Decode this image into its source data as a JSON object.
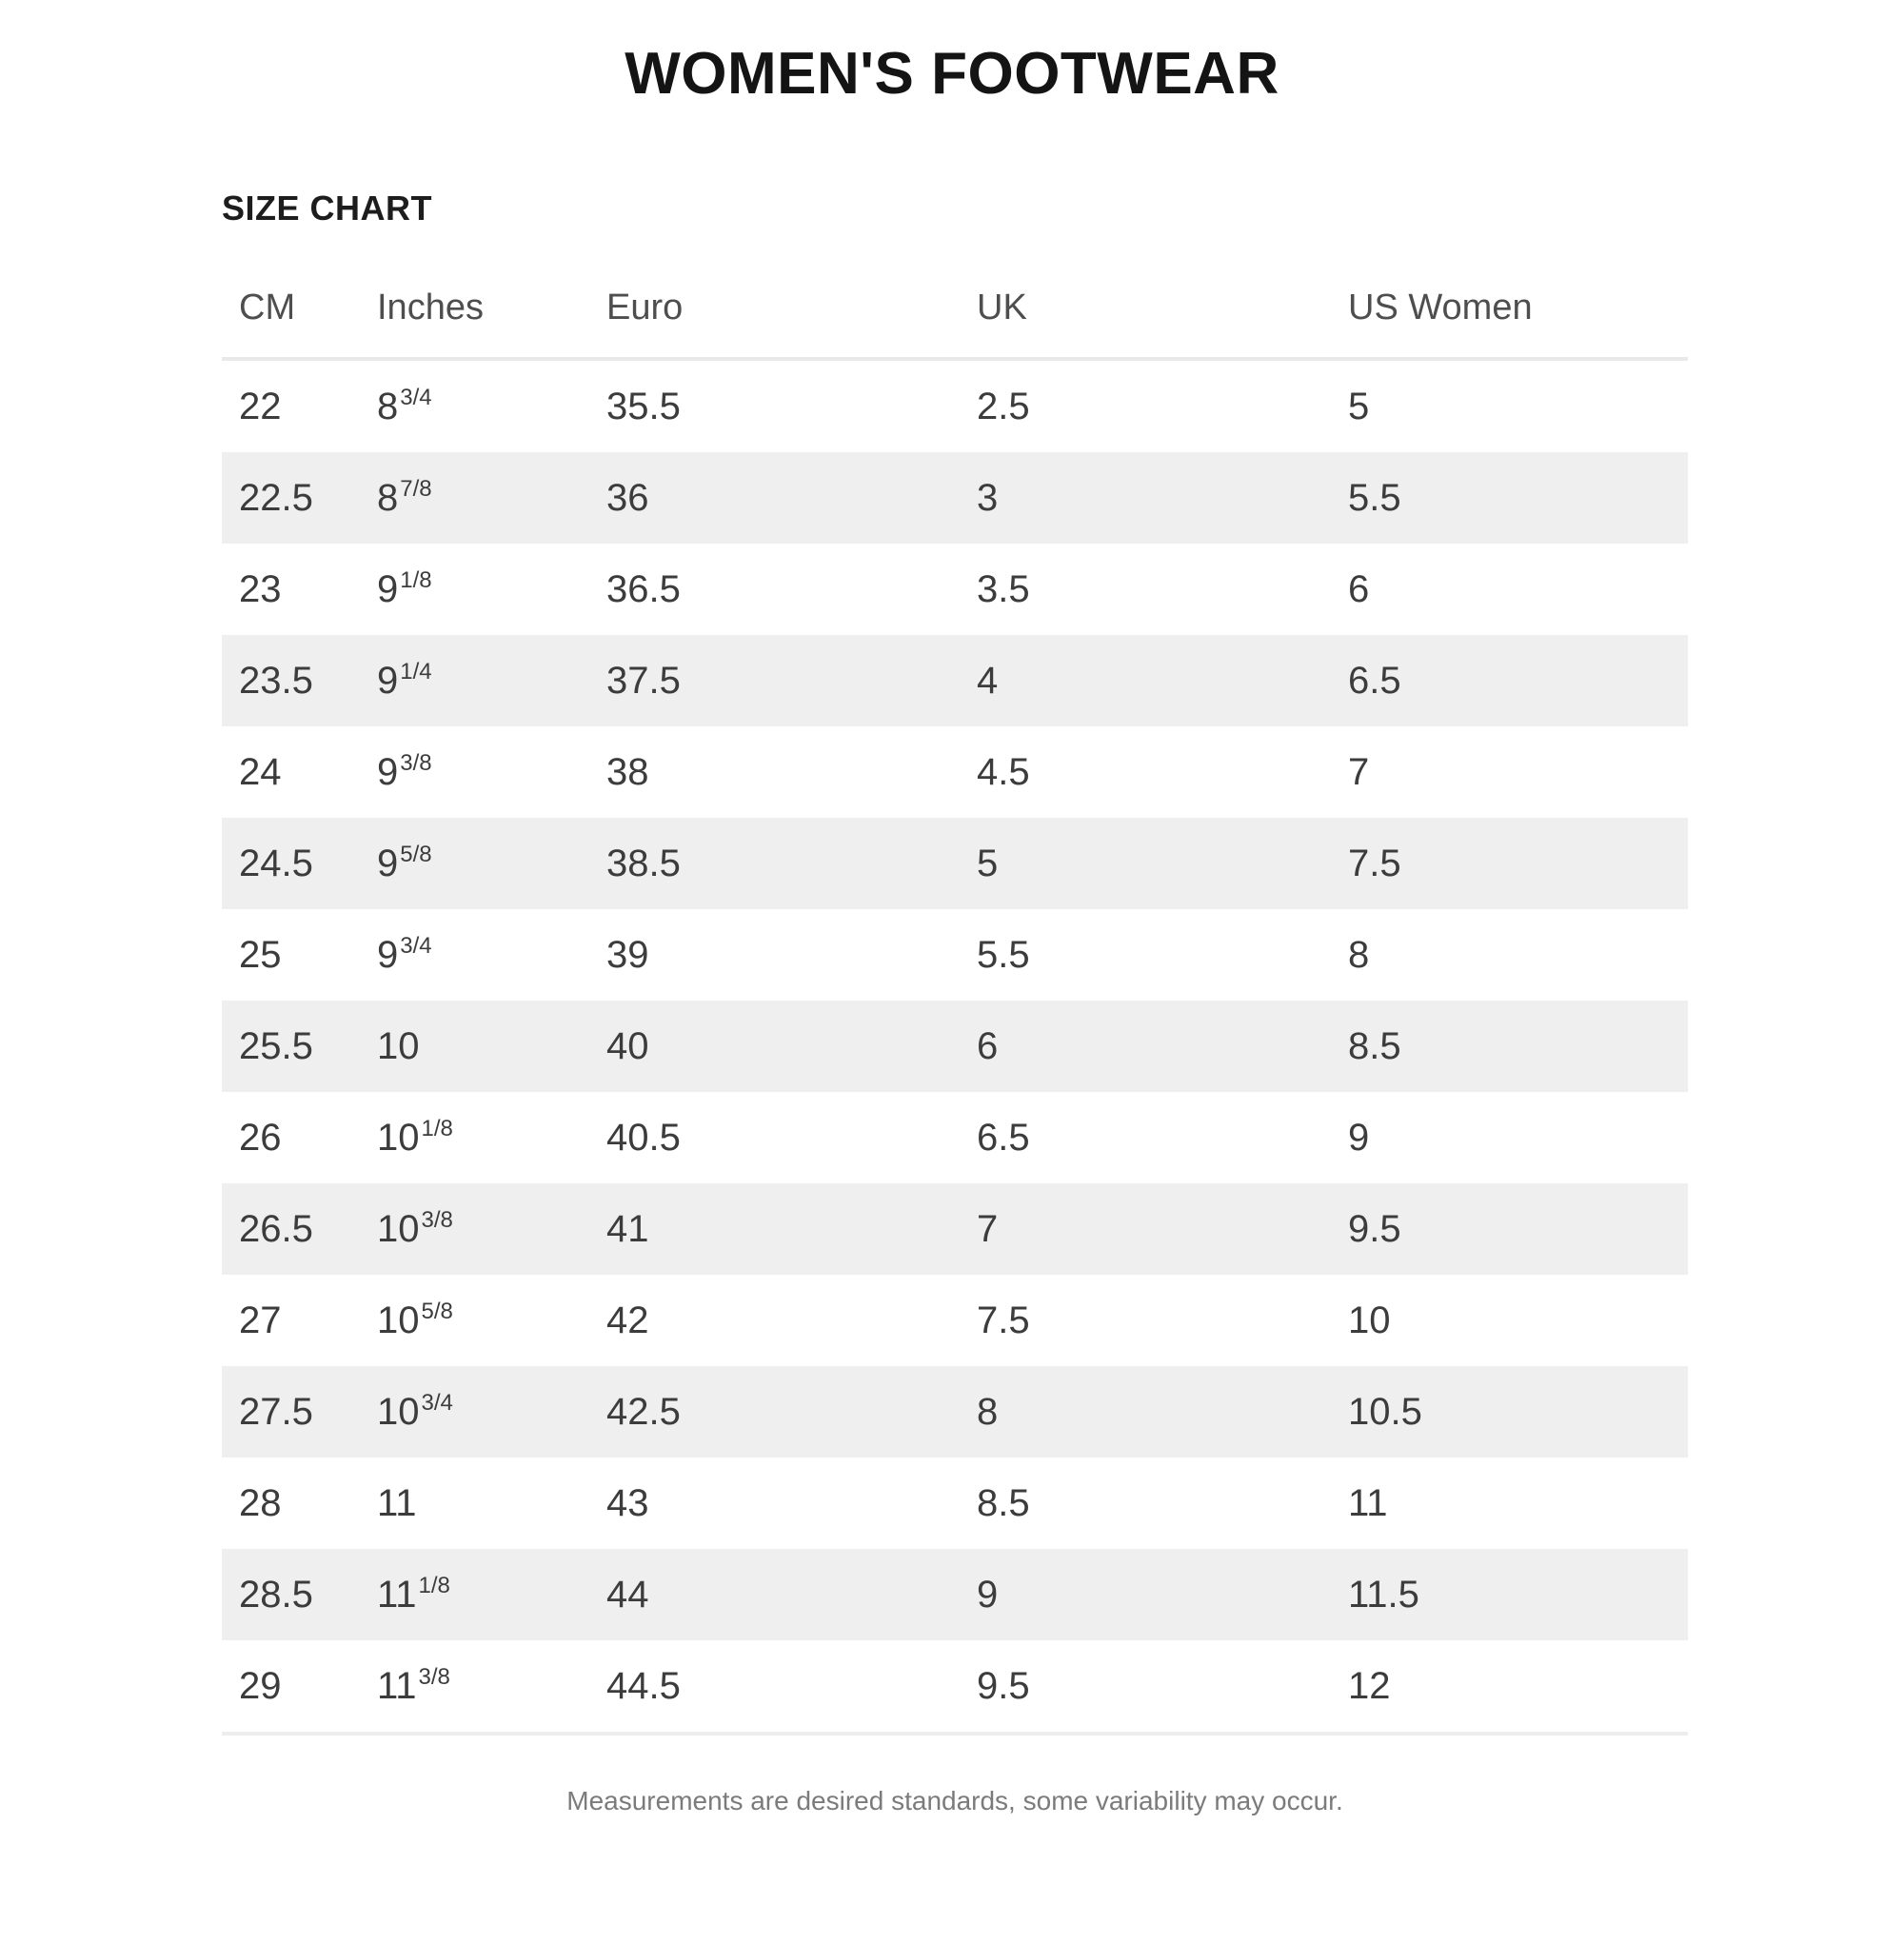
{
  "page": {
    "title": "WOMEN'S FOOTWEAR",
    "section_title": "SIZE CHART",
    "footnote": "Measurements are desired standards, some variability may occur."
  },
  "table": {
    "columns": [
      "CM",
      "Inches",
      "Euro",
      "UK",
      "US Women"
    ],
    "stripe_color": "#efefef",
    "rows": [
      {
        "cm": "22",
        "inches_base": "8",
        "inches_frac": "3/4",
        "euro": "35.5",
        "uk": "2.5",
        "us_women": "5"
      },
      {
        "cm": "22.5",
        "inches_base": "8",
        "inches_frac": "7/8",
        "euro": "36",
        "uk": "3",
        "us_women": "5.5"
      },
      {
        "cm": "23",
        "inches_base": "9",
        "inches_frac": "1/8",
        "euro": "36.5",
        "uk": "3.5",
        "us_women": "6"
      },
      {
        "cm": "23.5",
        "inches_base": "9",
        "inches_frac": "1/4",
        "euro": "37.5",
        "uk": "4",
        "us_women": "6.5"
      },
      {
        "cm": "24",
        "inches_base": "9",
        "inches_frac": "3/8",
        "euro": "38",
        "uk": "4.5",
        "us_women": "7"
      },
      {
        "cm": "24.5",
        "inches_base": "9",
        "inches_frac": "5/8",
        "euro": "38.5",
        "uk": "5",
        "us_women": "7.5"
      },
      {
        "cm": "25",
        "inches_base": "9",
        "inches_frac": "3/4",
        "euro": "39",
        "uk": "5.5",
        "us_women": "8"
      },
      {
        "cm": "25.5",
        "inches_base": "10",
        "inches_frac": "",
        "euro": "40",
        "uk": "6",
        "us_women": "8.5"
      },
      {
        "cm": "26",
        "inches_base": "10",
        "inches_frac": "1/8",
        "euro": "40.5",
        "uk": "6.5",
        "us_women": "9"
      },
      {
        "cm": "26.5",
        "inches_base": "10",
        "inches_frac": "3/8",
        "euro": "41",
        "uk": "7",
        "us_women": "9.5"
      },
      {
        "cm": "27",
        "inches_base": "10",
        "inches_frac": "5/8",
        "euro": "42",
        "uk": "7.5",
        "us_women": "10"
      },
      {
        "cm": "27.5",
        "inches_base": "10",
        "inches_frac": "3/4",
        "euro": "42.5",
        "uk": "8",
        "us_women": "10.5"
      },
      {
        "cm": "28",
        "inches_base": "11",
        "inches_frac": "",
        "euro": "43",
        "uk": "8.5",
        "us_women": "11"
      },
      {
        "cm": "28.5",
        "inches_base": "11",
        "inches_frac": "1/8",
        "euro": "44",
        "uk": "9",
        "us_women": "11.5"
      },
      {
        "cm": "29",
        "inches_base": "11",
        "inches_frac": "3/8",
        "euro": "44.5",
        "uk": "9.5",
        "us_women": "12"
      }
    ]
  },
  "chart_data": {
    "type": "table",
    "title": "WOMEN'S FOOTWEAR — SIZE CHART",
    "columns": [
      "CM",
      "Inches",
      "Euro",
      "UK",
      "US Women"
    ],
    "rows": [
      [
        "22",
        "8 3/4",
        "35.5",
        "2.5",
        "5"
      ],
      [
        "22.5",
        "8 7/8",
        "36",
        "3",
        "5.5"
      ],
      [
        "23",
        "9 1/8",
        "36.5",
        "3.5",
        "6"
      ],
      [
        "23.5",
        "9 1/4",
        "37.5",
        "4",
        "6.5"
      ],
      [
        "24",
        "9 3/8",
        "38",
        "4.5",
        "7"
      ],
      [
        "24.5",
        "9 5/8",
        "38.5",
        "5",
        "7.5"
      ],
      [
        "25",
        "9 3/4",
        "39",
        "5.5",
        "8"
      ],
      [
        "25.5",
        "10",
        "40",
        "6",
        "8.5"
      ],
      [
        "26",
        "10 1/8",
        "40.5",
        "6.5",
        "9"
      ],
      [
        "26.5",
        "10 3/8",
        "41",
        "7",
        "9.5"
      ],
      [
        "27",
        "10 5/8",
        "42",
        "7.5",
        "10"
      ],
      [
        "27.5",
        "10 3/4",
        "42.5",
        "8",
        "10.5"
      ],
      [
        "28",
        "11",
        "43",
        "8.5",
        "11"
      ],
      [
        "28.5",
        "11 1/8",
        "44",
        "9",
        "11.5"
      ],
      [
        "29",
        "11 3/8",
        "44.5",
        "9.5",
        "12"
      ]
    ]
  }
}
